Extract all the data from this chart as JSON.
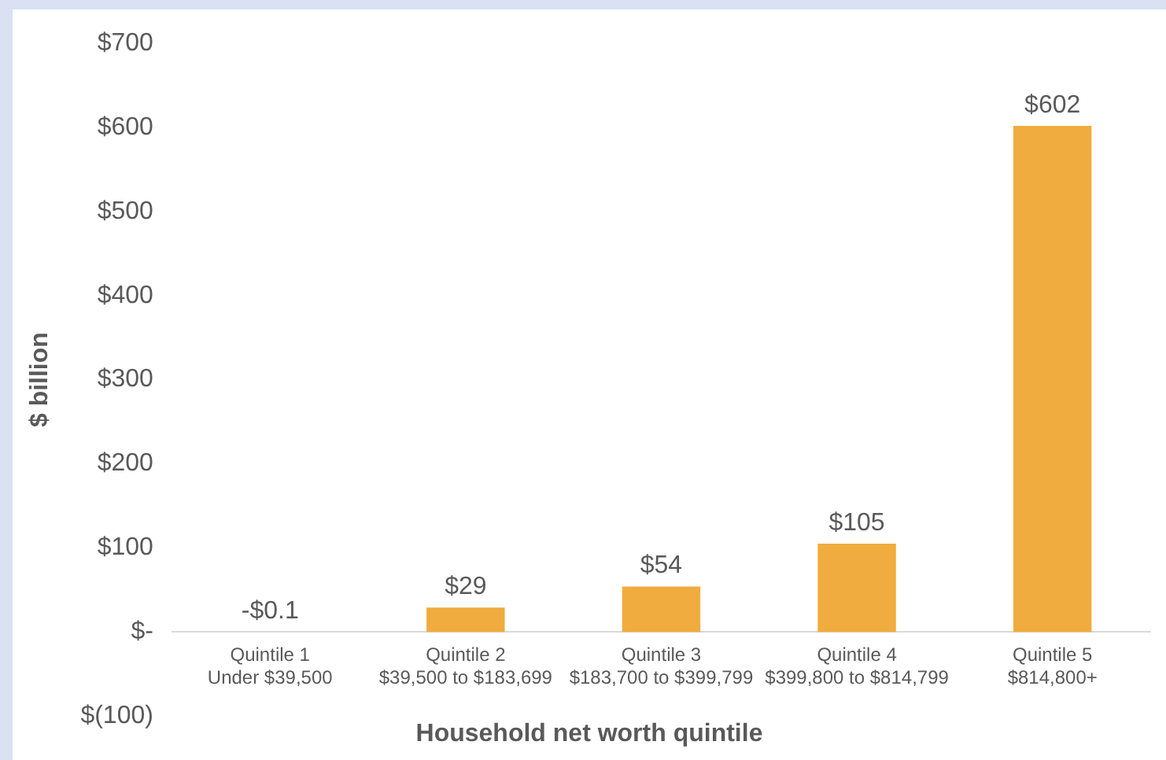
{
  "chart_data": {
    "type": "bar",
    "xlabel": "Household net worth quintile",
    "ylabel": "$ billion",
    "categories": [
      "Quintile 1\nUnder $39,500",
      "Quintile 2\n$39,500 to $183,699",
      "Quintile 3\n$183,700 to $399,799",
      "Quintile 4\n$399,800 to $814,799",
      "Quintile 5\n$814,800+"
    ],
    "values": [
      -0.1,
      29,
      54,
      105,
      602
    ],
    "value_labels": [
      "-$0.1",
      "$29",
      "$54",
      "$105",
      "$602"
    ],
    "color": "#f0ac3e",
    "ylim": [
      -100,
      700
    ],
    "yticks": [
      {
        "value": -100,
        "label": "$(100)"
      },
      {
        "value": 0,
        "label": "$-"
      },
      {
        "value": 100,
        "label": "$100"
      },
      {
        "value": 200,
        "label": "$200"
      },
      {
        "value": 300,
        "label": "$300"
      },
      {
        "value": 400,
        "label": "$400"
      },
      {
        "value": 500,
        "label": "$500"
      },
      {
        "value": 600,
        "label": "$600"
      },
      {
        "value": 700,
        "label": "$700"
      }
    ],
    "grid": false,
    "legend": false
  }
}
